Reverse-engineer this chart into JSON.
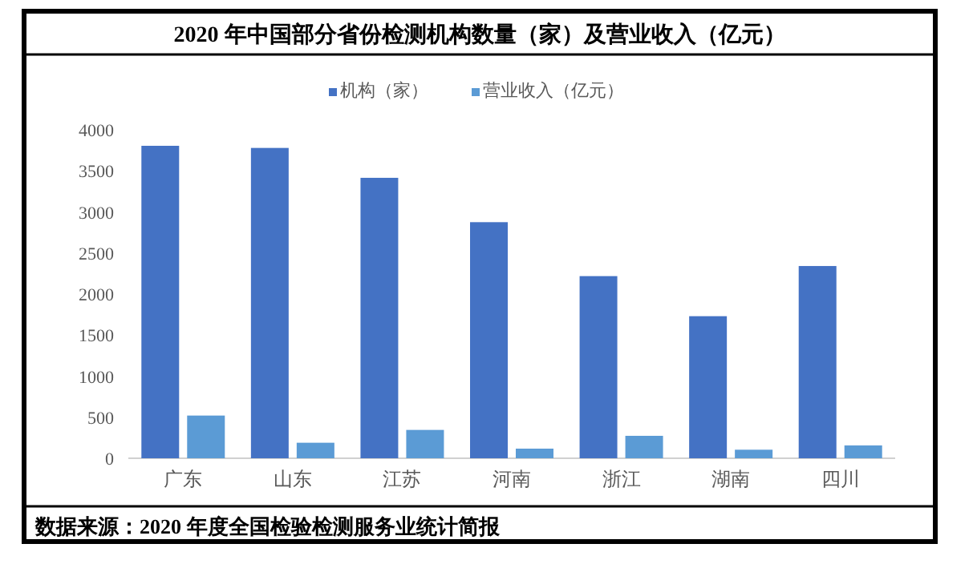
{
  "chart_data": {
    "type": "bar",
    "title": "2020 年中国部分省份检测机构数量（家）及营业收入（亿元）",
    "categories": [
      "广东",
      "山东",
      "江苏",
      "河南",
      "浙江",
      "湖南",
      "四川"
    ],
    "series": [
      {
        "name": "机构（家）",
        "color": "#4472c4",
        "values": [
          3805,
          3779,
          3415,
          2875,
          2218,
          1730,
          2341
        ]
      },
      {
        "name": "营业收入（亿元）",
        "color": "#5b9bd5",
        "values": [
          520,
          189,
          345,
          117,
          273,
          104,
          156
        ]
      }
    ],
    "ylim": [
      0,
      4000
    ],
    "yticks": [
      0,
      500,
      1000,
      1500,
      2000,
      2500,
      3000,
      3500,
      4000
    ],
    "legend": "top",
    "annotations": [
      "数据来源：2020 年度全国检验检测服务业统计简报"
    ]
  }
}
